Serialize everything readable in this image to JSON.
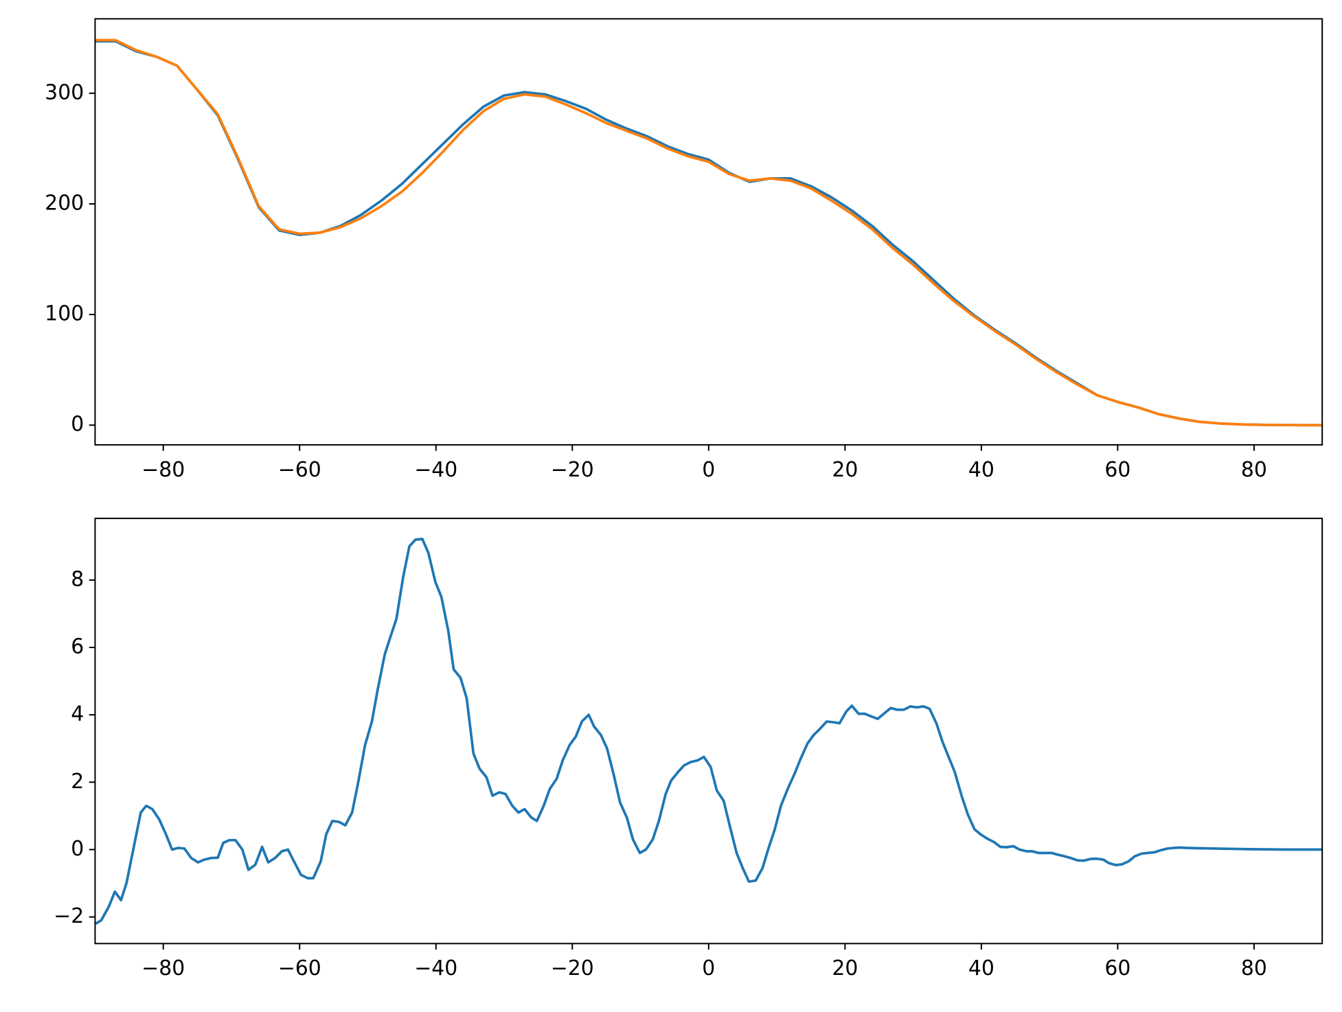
{
  "chart_data": [
    {
      "type": "line",
      "x": [
        -90,
        -87,
        -84,
        -81,
        -78,
        -75,
        -72,
        -69,
        -66,
        -63,
        -60,
        -57,
        -54,
        -51,
        -48,
        -45,
        -42,
        -39,
        -36,
        -33,
        -30,
        -27,
        -24,
        -21,
        -18,
        -15,
        -12,
        -9,
        -6,
        -3,
        0,
        3,
        6,
        9,
        12,
        15,
        18,
        21,
        24,
        27,
        30,
        33,
        36,
        39,
        42,
        45,
        48,
        51,
        54,
        57,
        60,
        63,
        66,
        69,
        72,
        75,
        78,
        81,
        84,
        87,
        90
      ],
      "series": [
        {
          "color": "#1f77b4",
          "values": [
            347,
            347,
            338,
            333,
            325,
            303,
            280,
            240,
            197,
            176,
            172,
            174,
            180,
            190,
            203,
            218,
            236,
            254,
            272,
            288,
            298,
            301,
            299,
            293,
            286,
            276,
            268,
            261,
            252,
            245,
            240,
            228,
            220,
            223,
            223,
            216,
            206,
            194,
            180,
            163,
            148,
            131,
            114,
            99,
            86,
            74,
            61,
            49,
            38,
            27,
            21,
            16,
            10,
            6,
            3,
            1.5,
            0.7,
            0.3,
            0.1,
            0,
            0
          ]
        },
        {
          "color": "#ff7f0e",
          "values": [
            348,
            348,
            339,
            333,
            325,
            303,
            281,
            241,
            198,
            177,
            173,
            174,
            179,
            187,
            198,
            211,
            228,
            247,
            267,
            284,
            295,
            299,
            297,
            290,
            282,
            273,
            266,
            259,
            250,
            243,
            238,
            227,
            221,
            223,
            221,
            214,
            203,
            191,
            177,
            160,
            145,
            128,
            112,
            98,
            85,
            73,
            60,
            48,
            37,
            27,
            21,
            16,
            10,
            6,
            3,
            1.5,
            0.7,
            0.3,
            0.1,
            0,
            0
          ]
        }
      ],
      "xlim": [
        -90,
        90
      ],
      "ylim": [
        -17.8,
        367.3
      ],
      "xticks": [
        {
          "value": -80,
          "label": "−80"
        },
        {
          "value": -60,
          "label": "−60"
        },
        {
          "value": -40,
          "label": "−40"
        },
        {
          "value": -20,
          "label": "−20"
        },
        0,
        20,
        40,
        60,
        80
      ],
      "yticks": [
        0,
        100,
        200,
        300
      ]
    },
    {
      "type": "line",
      "x": [
        -89.9,
        -89.1,
        -88,
        -87.1,
        -86.2,
        -85.4,
        -84.3,
        -83.3,
        -82.5,
        -81.6,
        -80.6,
        -79.6,
        -78.7,
        -77.8,
        -76.9,
        -75.9,
        -74.9,
        -74,
        -73,
        -72,
        -71.2,
        -70.3,
        -69.4,
        -68.4,
        -67.5,
        -66.5,
        -65.5,
        -64.6,
        -63.6,
        -62.6,
        -61.7,
        -60.7,
        -59.8,
        -58.8,
        -58,
        -56.9,
        -56.1,
        -55.2,
        -54.2,
        -53.3,
        -52.3,
        -51.4,
        -50.4,
        -49.4,
        -48.5,
        -47.5,
        -46.7,
        -45.8,
        -44.8,
        -43.9,
        -43,
        -42,
        -41.1,
        -40.1,
        -39.2,
        -38.2,
        -37.4,
        -36.4,
        -35.5,
        -34.5,
        -33.6,
        -32.6,
        -31.7,
        -30.7,
        -29.8,
        -28.8,
        -27.9,
        -27,
        -26,
        -25.2,
        -24.2,
        -23.3,
        -22.3,
        -21.4,
        -20.4,
        -19.5,
        -18.6,
        -17.6,
        -16.8,
        -15.8,
        -14.9,
        -13.9,
        -13,
        -12,
        -11.1,
        -10.1,
        -9.2,
        -8.2,
        -7.3,
        -6.3,
        -5.5,
        -4.5,
        -3.6,
        -2.6,
        -1.6,
        -0.7,
        0.3,
        1.2,
        2.2,
        3.1,
        4.1,
        5,
        5.9,
        6.9,
        7.9,
        8.8,
        9.7,
        10.6,
        11.6,
        12.6,
        13.5,
        14.5,
        15.4,
        16.4,
        17.3,
        18.3,
        19.2,
        20.2,
        21,
        22,
        22.9,
        23.9,
        24.8,
        25.8,
        26.7,
        27.7,
        28.6,
        29.6,
        30.5,
        31.5,
        32.4,
        33.4,
        34.3,
        35.2,
        36.1,
        37.1,
        38,
        39,
        39.9,
        40.9,
        41.8,
        42.8,
        43.7,
        44.7,
        45.6,
        46.6,
        47.4,
        48.4,
        49.3,
        50.3,
        51.2,
        52.2,
        53.1,
        54.1,
        55,
        56,
        56.9,
        57.9,
        58.7,
        59.7,
        60.6,
        61.6,
        62.5,
        63.5,
        64.4,
        65.4,
        66.3,
        67.3,
        68.2,
        69.2,
        70.1,
        72,
        74.5,
        77,
        79.5,
        84.5,
        90
      ],
      "series": [
        {
          "color": "#1f77b4",
          "values": [
            -2.2,
            -2.1,
            -1.7,
            -1.25,
            -1.5,
            -1.0,
            0.1,
            1.1,
            1.3,
            1.2,
            0.9,
            0.45,
            0.0,
            0.05,
            0.03,
            -0.25,
            -0.38,
            -0.3,
            -0.25,
            -0.24,
            0.2,
            0.28,
            0.28,
            0.0,
            -0.6,
            -0.45,
            0.08,
            -0.38,
            -0.25,
            -0.05,
            0.0,
            -0.4,
            -0.75,
            -0.85,
            -0.85,
            -0.35,
            0.45,
            0.85,
            0.82,
            0.72,
            1.1,
            2.0,
            3.1,
            3.8,
            4.8,
            5.8,
            6.3,
            6.85,
            8.1,
            9.0,
            9.2,
            9.22,
            8.8,
            7.95,
            7.5,
            6.5,
            5.35,
            5.1,
            4.5,
            2.85,
            2.4,
            2.15,
            1.6,
            1.7,
            1.65,
            1.3,
            1.1,
            1.2,
            0.95,
            0.85,
            1.3,
            1.8,
            2.1,
            2.65,
            3.1,
            3.35,
            3.8,
            4.0,
            3.65,
            3.4,
            3.0,
            2.2,
            1.4,
            0.95,
            0.3,
            -0.1,
            0.0,
            0.3,
            0.85,
            1.65,
            2.05,
            2.3,
            2.5,
            2.6,
            2.65,
            2.75,
            2.45,
            1.75,
            1.45,
            0.7,
            -0.1,
            -0.55,
            -0.95,
            -0.92,
            -0.55,
            0.05,
            0.6,
            1.3,
            1.8,
            2.25,
            2.7,
            3.15,
            3.4,
            3.6,
            3.8,
            3.78,
            3.75,
            4.1,
            4.27,
            4.03,
            4.03,
            3.95,
            3.88,
            4.05,
            4.2,
            4.15,
            4.15,
            4.25,
            4.22,
            4.25,
            4.18,
            3.75,
            3.2,
            2.75,
            2.3,
            1.6,
            1.05,
            0.6,
            0.45,
            0.32,
            0.23,
            0.08,
            0.07,
            0.1,
            0.0,
            -0.05,
            -0.05,
            -0.1,
            -0.1,
            -0.1,
            -0.15,
            -0.2,
            -0.25,
            -0.32,
            -0.33,
            -0.28,
            -0.27,
            -0.3,
            -0.4,
            -0.46,
            -0.44,
            -0.35,
            -0.2,
            -0.12,
            -0.1,
            -0.08,
            -0.02,
            0.03,
            0.05,
            0.06,
            0.05,
            0.04,
            0.03,
            0.02,
            0.01,
            0.0,
            0.0
          ]
        }
      ],
      "xlim": [
        -90,
        90
      ],
      "ylim": [
        -2.79,
        9.83
      ],
      "xticks": [
        {
          "value": -80,
          "label": "−80"
        },
        {
          "value": -60,
          "label": "−60"
        },
        {
          "value": -40,
          "label": "−40"
        },
        {
          "value": -20,
          "label": "−20"
        },
        0,
        20,
        40,
        60,
        80
      ],
      "yticks": [
        {
          "value": -2,
          "label": "−2"
        },
        0,
        2,
        4,
        6,
        8
      ]
    }
  ]
}
